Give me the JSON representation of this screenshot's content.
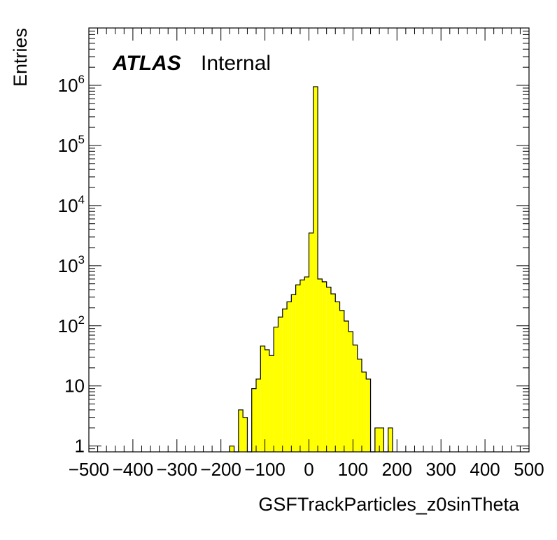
{
  "chart_data": {
    "type": "bar",
    "histogram": true,
    "xlabel": "GSFTrackParticles_z0sinTheta",
    "ylabel": "Entries",
    "label": {
      "experiment": "ATLAS",
      "status": "Internal"
    },
    "xlim": [
      -500,
      500
    ],
    "ylim": [
      0.8,
      9000000
    ],
    "log_y": true,
    "grid": false,
    "bin_width": 10,
    "fill_color": "#ffff00",
    "line_color": "#000000",
    "x_ticks": [
      "−500",
      "−400",
      "−300",
      "−200",
      "−100",
      "0",
      "100",
      "200",
      "300",
      "400",
      "500"
    ],
    "y_ticks": [
      {
        "base": "1",
        "exp": ""
      },
      {
        "base": "10",
        "exp": ""
      },
      {
        "base": "10",
        "exp": "2"
      },
      {
        "base": "10",
        "exp": "3"
      },
      {
        "base": "10",
        "exp": "4"
      },
      {
        "base": "10",
        "exp": "5"
      },
      {
        "base": "10",
        "exp": "6"
      }
    ],
    "bins": [
      {
        "x_low": -180,
        "x_high": -170,
        "value": 1
      },
      {
        "x_low": -170,
        "x_high": -160,
        "value": 0
      },
      {
        "x_low": -160,
        "x_high": -150,
        "value": 4
      },
      {
        "x_low": -150,
        "x_high": -140,
        "value": 3
      },
      {
        "x_low": -140,
        "x_high": -130,
        "value": 0
      },
      {
        "x_low": -130,
        "x_high": -120,
        "value": 9
      },
      {
        "x_low": -120,
        "x_high": -110,
        "value": 13
      },
      {
        "x_low": -110,
        "x_high": -100,
        "value": 46
      },
      {
        "x_low": -100,
        "x_high": -90,
        "value": 40
      },
      {
        "x_low": -90,
        "x_high": -80,
        "value": 32
      },
      {
        "x_low": -80,
        "x_high": -70,
        "value": 95
      },
      {
        "x_low": -70,
        "x_high": -60,
        "value": 140
      },
      {
        "x_low": -60,
        "x_high": -50,
        "value": 190
      },
      {
        "x_low": -50,
        "x_high": -40,
        "value": 250
      },
      {
        "x_low": -40,
        "x_high": -30,
        "value": 330
      },
      {
        "x_low": -30,
        "x_high": -20,
        "value": 480
      },
      {
        "x_low": -20,
        "x_high": -10,
        "value": 580
      },
      {
        "x_low": -10,
        "x_high": 0,
        "value": 650
      },
      {
        "x_low": 0,
        "x_high": 10,
        "value": 3500
      },
      {
        "x_low": 10,
        "x_high": 20,
        "value": 950000
      },
      {
        "x_low": 20,
        "x_high": 30,
        "value": 600
      },
      {
        "x_low": 30,
        "x_high": 40,
        "value": 540
      },
      {
        "x_low": 40,
        "x_high": 50,
        "value": 440
      },
      {
        "x_low": 50,
        "x_high": 60,
        "value": 340
      },
      {
        "x_low": 60,
        "x_high": 70,
        "value": 250
      },
      {
        "x_low": 70,
        "x_high": 80,
        "value": 180
      },
      {
        "x_low": 80,
        "x_high": 90,
        "value": 120
      },
      {
        "x_low": 90,
        "x_high": 100,
        "value": 80
      },
      {
        "x_low": 100,
        "x_high": 110,
        "value": 48
      },
      {
        "x_low": 110,
        "x_high": 120,
        "value": 28
      },
      {
        "x_low": 120,
        "x_high": 130,
        "value": 17
      },
      {
        "x_low": 130,
        "x_high": 140,
        "value": 13
      },
      {
        "x_low": 140,
        "x_high": 150,
        "value": 0
      },
      {
        "x_low": 150,
        "x_high": 160,
        "value": 2
      },
      {
        "x_low": 160,
        "x_high": 170,
        "value": 2
      },
      {
        "x_low": 170,
        "x_high": 180,
        "value": 0
      },
      {
        "x_low": 180,
        "x_high": 190,
        "value": 2
      }
    ]
  }
}
